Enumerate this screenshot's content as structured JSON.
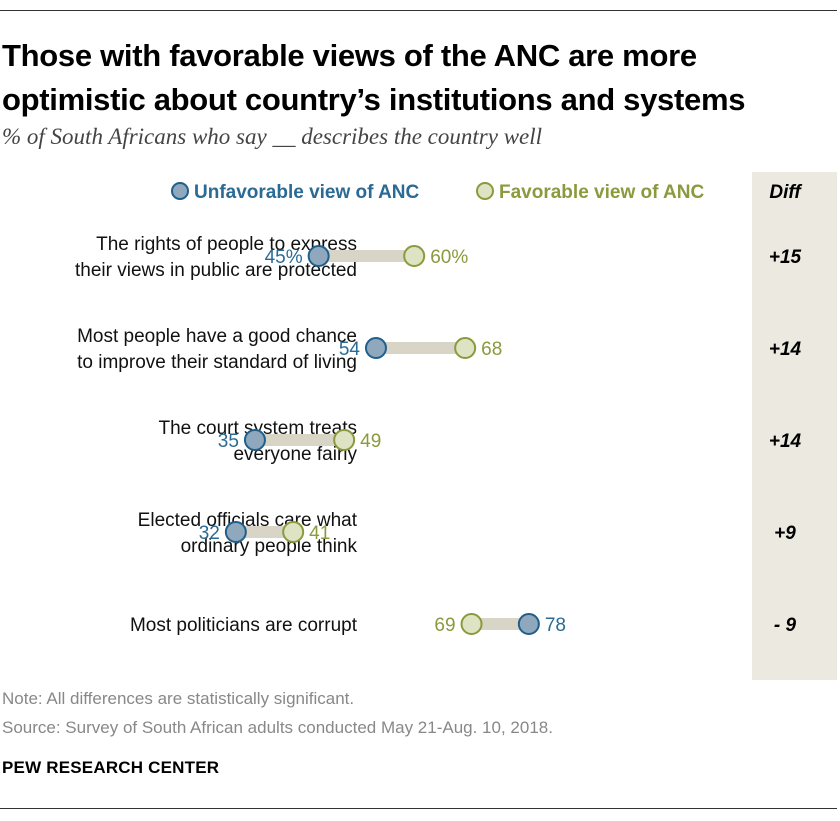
{
  "chart_data": {
    "type": "dot",
    "title": "Those with favorable views of the ANC are more optimistic about country’s institutions and systems",
    "subtitle": "% of South Africans who say __ describes the country well",
    "legend": {
      "unfavorable": "Unfavorable view of ANC",
      "favorable": "Favorable view of ANC",
      "diff": "Diff"
    },
    "colors": {
      "unfavorable_fill": "#8fa8bd",
      "unfavorable_stroke": "#1f5f8b",
      "unfavorable_text": "#2a6a94",
      "favorable_fill": "#dde3c3",
      "favorable_stroke": "#8a9a3c",
      "favorable_text": "#8a9a3c",
      "connector": "#d8d5c6",
      "diff_band": "#ece9e0"
    },
    "categories": [
      [
        "The rights of people to express",
        "their views in public are protected"
      ],
      [
        "Most people have a good chance",
        "to improve their standard of living"
      ],
      [
        "The court system treats",
        "everyone fairly"
      ],
      [
        "Elected officials care what",
        "ordinary people think"
      ],
      [
        "Most politicians are corrupt"
      ]
    ],
    "series": [
      {
        "name": "Unfavorable view of ANC",
        "values": [
          45,
          54,
          35,
          32,
          78
        ]
      },
      {
        "name": "Favorable view of ANC",
        "values": [
          60,
          68,
          49,
          41,
          69
        ]
      }
    ],
    "value_labels": {
      "unfavorable": [
        "45%",
        "54",
        "35",
        "32",
        "78"
      ],
      "favorable": [
        "60%",
        "68",
        "49",
        "41",
        "69"
      ]
    },
    "diff": [
      "+15",
      "+14",
      "+14",
      "+9",
      "- 9"
    ]
  },
  "notes": {
    "note": "Note: All differences are statistically significant.",
    "source": "Source: Survey of South African adults conducted May 21-Aug. 10, 2018."
  },
  "brand": "PEW RESEARCH CENTER"
}
